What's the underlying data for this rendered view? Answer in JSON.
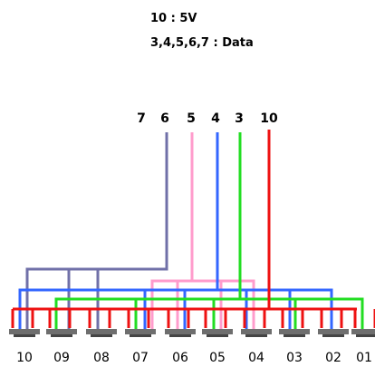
{
  "legend": {
    "power": "10 : 5V",
    "data": "3,4,5,6,7 : Data"
  },
  "wires": [
    {
      "label": "7",
      "color": null
    },
    {
      "label": "6",
      "color": "#7070a8"
    },
    {
      "label": "5",
      "color": "#ff9ccc"
    },
    {
      "label": "4",
      "color": "#3366ff"
    },
    {
      "label": "3",
      "color": "#22dd22"
    },
    {
      "label": "10",
      "color": "#ee1111"
    }
  ],
  "pins": [
    "10",
    "09",
    "08",
    "07",
    "06",
    "05",
    "04",
    "03",
    "02",
    "01"
  ],
  "colors": {
    "purple": "#7070a8",
    "pink": "#ff9ccc",
    "blue": "#3366ff",
    "green": "#22dd22",
    "red": "#ee1111",
    "connector": "#6e6e6e"
  }
}
